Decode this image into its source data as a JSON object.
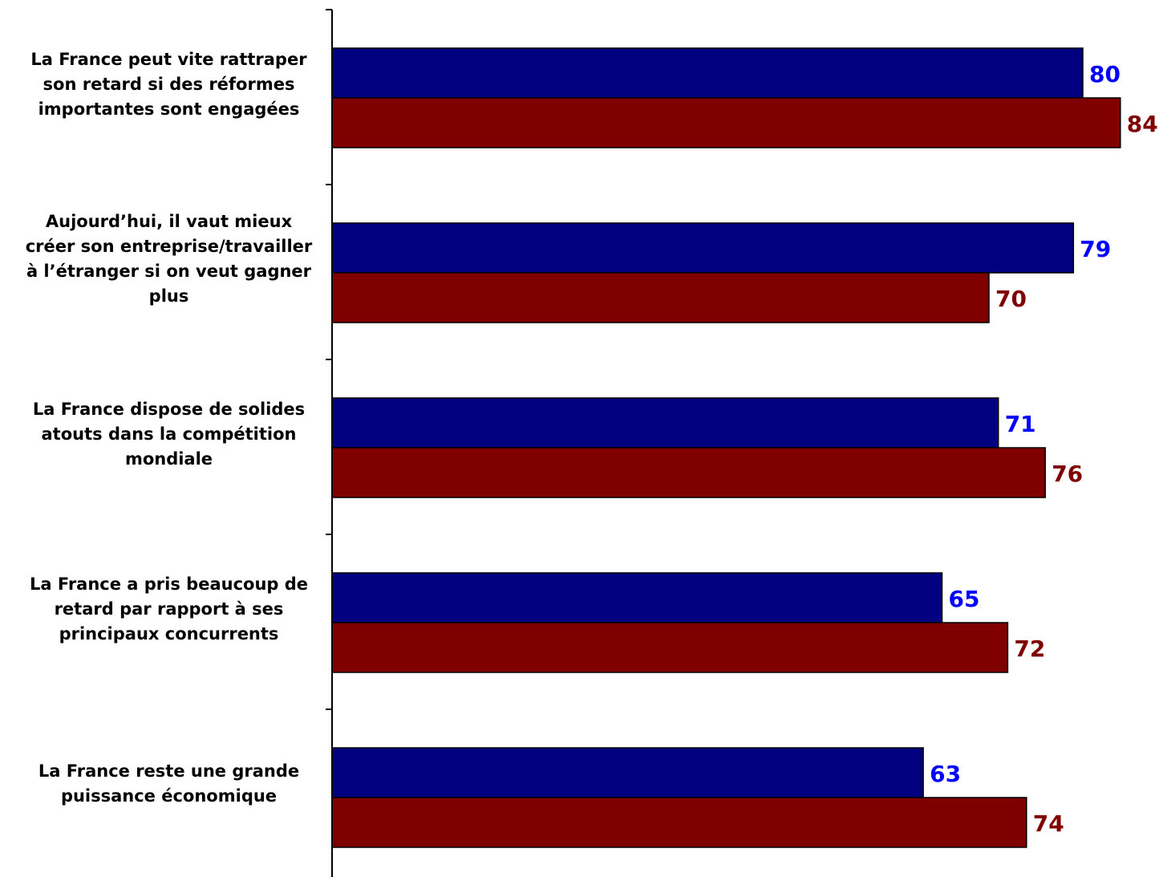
{
  "colors": {
    "series_1": "#000080",
    "series_2": "#800000",
    "series_1_label": "#0000ff",
    "series_2_label": "#800000"
  },
  "chart_data": {
    "type": "bar",
    "orientation": "horizontal",
    "grouped": true,
    "categories": [
      [
        "La France peut vite rattraper",
        "son retard si des réformes",
        "importantes sont engagées"
      ],
      [
        "Aujourd’hui, il vaut mieux",
        "créer son entreprise/travailler",
        "à l’étranger si on veut gagner",
        "plus"
      ],
      [
        "La France dispose de solides",
        "atouts dans la compétition",
        "mondiale"
      ],
      [
        "La France a pris beaucoup de",
        "retard par rapport à ses",
        "principaux concurrents"
      ],
      [
        "La France reste une grande",
        "puissance économique"
      ]
    ],
    "series": [
      {
        "values": [
          80,
          79,
          71,
          65,
          63
        ]
      },
      {
        "values": [
          84,
          70,
          76,
          72,
          74
        ]
      }
    ],
    "xlim": [
      0,
      85
    ],
    "grid": false,
    "legend": "none"
  }
}
